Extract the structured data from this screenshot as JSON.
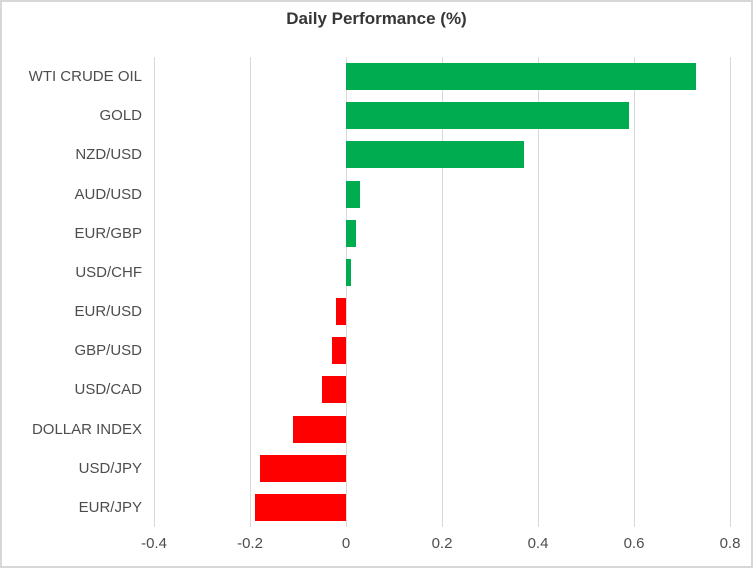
{
  "chart_data": {
    "type": "bar",
    "orientation": "horizontal",
    "title": "Daily Performance (%)",
    "categories": [
      "WTI CRUDE OIL",
      "GOLD",
      "NZD/USD",
      "AUD/USD",
      "EUR/GBP",
      "USD/CHF",
      "EUR/USD",
      "GBP/USD",
      "USD/CAD",
      "DOLLAR INDEX",
      "USD/JPY",
      "EUR/JPY"
    ],
    "values": [
      0.73,
      0.59,
      0.37,
      0.03,
      0.02,
      0.01,
      -0.02,
      -0.03,
      -0.05,
      -0.11,
      -0.18,
      -0.19
    ],
    "xlim": [
      -0.4,
      0.8
    ],
    "x_ticks": [
      -0.4,
      -0.2,
      0,
      0.2,
      0.4,
      0.6,
      0.8
    ],
    "x_tick_labels": [
      "-0.4",
      "-0.2",
      "0",
      "0.2",
      "0.4",
      "0.6",
      "0.8"
    ],
    "grid": "vertical",
    "legend": "none",
    "colors": {
      "positive": "#00ac50",
      "negative": "#ff0000",
      "gridline": "#d9d9d9",
      "border": "#d7d7d7",
      "title_text": "#363636",
      "axis_text": "#4d4d4d",
      "background": "#ffffff"
    }
  }
}
